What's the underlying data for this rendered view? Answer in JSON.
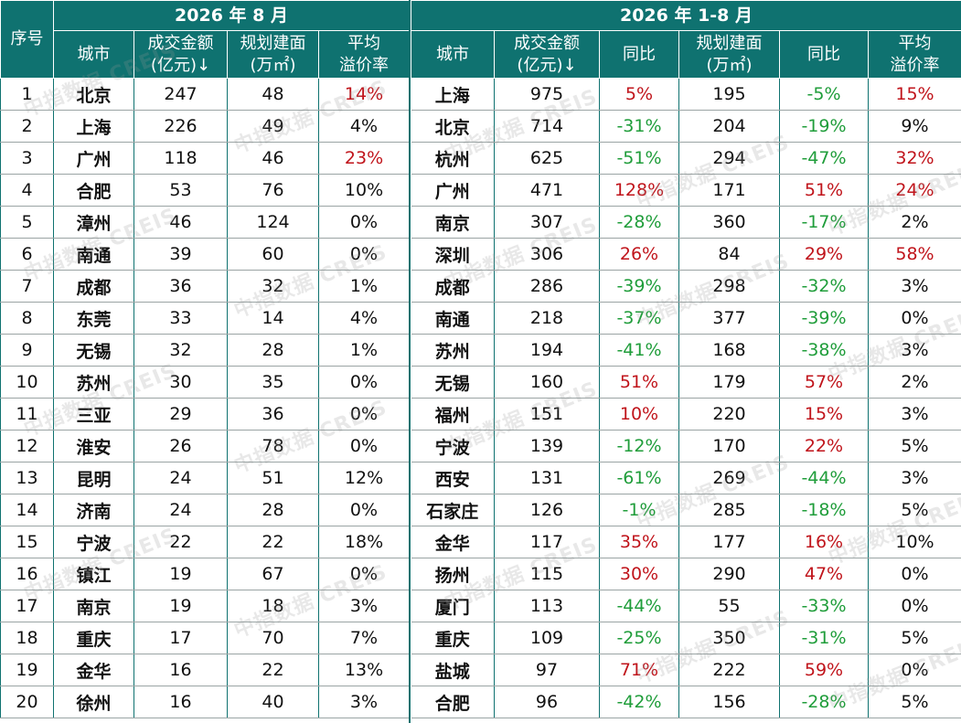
{
  "left": {
    "title": "2026 年 8 月",
    "seq_header": "序号",
    "headers": [
      "城市",
      "成交金额\n(亿元)↓",
      "规划建面\n(万㎡)",
      "平均\n溢价率"
    ],
    "rows": [
      {
        "no": "1",
        "city": "北京",
        "amount": "247",
        "area": "48",
        "premium": "14%"
      },
      {
        "no": "2",
        "city": "上海",
        "amount": "226",
        "area": "49",
        "premium": "4%"
      },
      {
        "no": "3",
        "city": "广州",
        "amount": "118",
        "area": "46",
        "premium": "23%"
      },
      {
        "no": "4",
        "city": "合肥",
        "amount": "53",
        "area": "76",
        "premium": "10%"
      },
      {
        "no": "5",
        "city": "漳州",
        "amount": "46",
        "area": "124",
        "premium": "0%"
      },
      {
        "no": "6",
        "city": "南通",
        "amount": "39",
        "area": "60",
        "premium": "0%"
      },
      {
        "no": "7",
        "city": "成都",
        "amount": "36",
        "area": "32",
        "premium": "1%"
      },
      {
        "no": "8",
        "city": "东莞",
        "amount": "33",
        "area": "14",
        "premium": "4%"
      },
      {
        "no": "9",
        "city": "无锡",
        "amount": "32",
        "area": "28",
        "premium": "1%"
      },
      {
        "no": "10",
        "city": "苏州",
        "amount": "30",
        "area": "35",
        "premium": "0%"
      },
      {
        "no": "11",
        "city": "三亚",
        "amount": "29",
        "area": "36",
        "premium": "0%"
      },
      {
        "no": "12",
        "city": "淮安",
        "amount": "26",
        "area": "78",
        "premium": "0%"
      },
      {
        "no": "13",
        "city": "昆明",
        "amount": "24",
        "area": "51",
        "premium": "12%"
      },
      {
        "no": "14",
        "city": "济南",
        "amount": "24",
        "area": "28",
        "premium": "0%"
      },
      {
        "no": "15",
        "city": "宁波",
        "amount": "22",
        "area": "22",
        "premium": "18%"
      },
      {
        "no": "16",
        "city": "镇江",
        "amount": "19",
        "area": "67",
        "premium": "0%"
      },
      {
        "no": "17",
        "city": "南京",
        "amount": "19",
        "area": "18",
        "premium": "3%"
      },
      {
        "no": "18",
        "city": "重庆",
        "amount": "17",
        "area": "70",
        "premium": "7%"
      },
      {
        "no": "19",
        "city": "金华",
        "amount": "16",
        "area": "22",
        "premium": "13%"
      },
      {
        "no": "20",
        "city": "徐州",
        "amount": "16",
        "area": "40",
        "premium": "3%"
      }
    ],
    "premium_red": [
      "14%",
      "23%"
    ]
  },
  "right": {
    "title": "2026 年 1-8 月",
    "headers": [
      "城市",
      "成交金额\n(亿元)↓",
      "同比",
      "规划建面\n(万㎡)",
      "同比",
      "平均\n溢价率"
    ],
    "rows": [
      {
        "city": "上海",
        "amount": "975",
        "yoy1": "5%",
        "area": "195",
        "yoy2": "-5%",
        "premium": "15%"
      },
      {
        "city": "北京",
        "amount": "714",
        "yoy1": "-31%",
        "area": "204",
        "yoy2": "-19%",
        "premium": "9%"
      },
      {
        "city": "杭州",
        "amount": "625",
        "yoy1": "-51%",
        "area": "294",
        "yoy2": "-47%",
        "premium": "32%"
      },
      {
        "city": "广州",
        "amount": "471",
        "yoy1": "128%",
        "area": "171",
        "yoy2": "51%",
        "premium": "24%"
      },
      {
        "city": "南京",
        "amount": "307",
        "yoy1": "-28%",
        "area": "360",
        "yoy2": "-17%",
        "premium": "2%"
      },
      {
        "city": "深圳",
        "amount": "306",
        "yoy1": "26%",
        "area": "84",
        "yoy2": "29%",
        "premium": "58%"
      },
      {
        "city": "成都",
        "amount": "286",
        "yoy1": "-39%",
        "area": "298",
        "yoy2": "-32%",
        "premium": "3%"
      },
      {
        "city": "南通",
        "amount": "218",
        "yoy1": "-37%",
        "area": "377",
        "yoy2": "-39%",
        "premium": "0%"
      },
      {
        "city": "苏州",
        "amount": "194",
        "yoy1": "-41%",
        "area": "168",
        "yoy2": "-38%",
        "premium": "3%"
      },
      {
        "city": "无锡",
        "amount": "160",
        "yoy1": "51%",
        "area": "179",
        "yoy2": "57%",
        "premium": "2%"
      },
      {
        "city": "福州",
        "amount": "151",
        "yoy1": "10%",
        "area": "220",
        "yoy2": "15%",
        "premium": "3%"
      },
      {
        "city": "宁波",
        "amount": "139",
        "yoy1": "-12%",
        "area": "170",
        "yoy2": "22%",
        "premium": "5%"
      },
      {
        "city": "西安",
        "amount": "131",
        "yoy1": "-61%",
        "area": "269",
        "yoy2": "-44%",
        "premium": "3%"
      },
      {
        "city": "石家庄",
        "amount": "126",
        "yoy1": "-1%",
        "area": "285",
        "yoy2": "-18%",
        "premium": "5%"
      },
      {
        "city": "金华",
        "amount": "117",
        "yoy1": "35%",
        "area": "177",
        "yoy2": "16%",
        "premium": "10%"
      },
      {
        "city": "扬州",
        "amount": "115",
        "yoy1": "30%",
        "area": "290",
        "yoy2": "47%",
        "premium": "0%"
      },
      {
        "city": "厦门",
        "amount": "113",
        "yoy1": "-44%",
        "area": "55",
        "yoy2": "-33%",
        "premium": "0%"
      },
      {
        "city": "重庆",
        "amount": "109",
        "yoy1": "-25%",
        "area": "350",
        "yoy2": "-31%",
        "premium": "5%"
      },
      {
        "city": "盐城",
        "amount": "97",
        "yoy1": "71%",
        "area": "222",
        "yoy2": "59%",
        "premium": "0%"
      },
      {
        "city": "合肥",
        "amount": "96",
        "yoy1": "-42%",
        "area": "156",
        "yoy2": "-28%",
        "premium": "5%"
      }
    ],
    "premium_red": [
      "15%",
      "32%",
      "24%",
      "58%"
    ]
  },
  "watermark": "中指数据 CREIS",
  "colors": {
    "header_bg": "#0f7270",
    "positive": "#c0141b",
    "negative": "#1f9d3a"
  }
}
